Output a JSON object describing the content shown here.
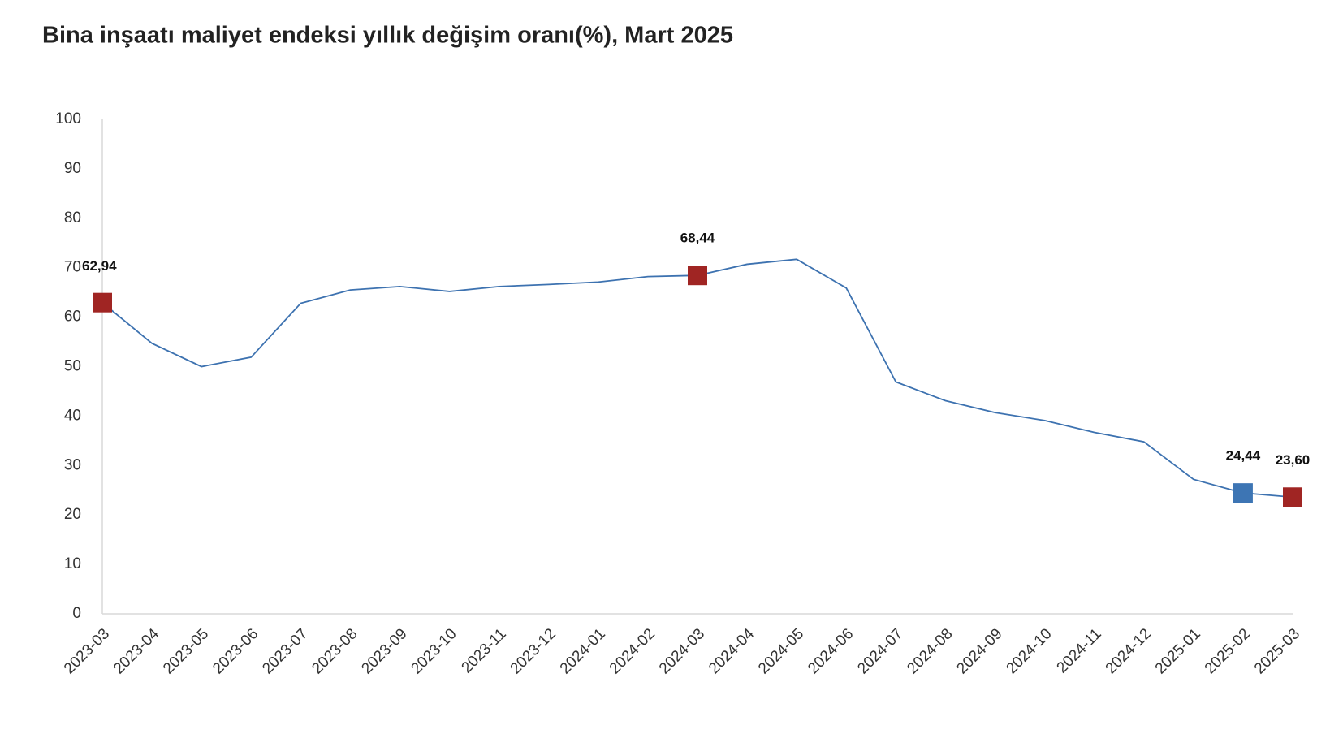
{
  "chart_data": {
    "type": "line",
    "title": "Bina inşaatı maliyet endeksi yıllık değişim oranı(%), Mart 2025",
    "categories": [
      "2023-03",
      "2023-04",
      "2023-05",
      "2023-06",
      "2023-07",
      "2023-08",
      "2023-09",
      "2023-10",
      "2023-11",
      "2023-12",
      "2024-01",
      "2024-02",
      "2024-03",
      "2024-04",
      "2024-05",
      "2024-06",
      "2024-07",
      "2024-08",
      "2024-09",
      "2024-10",
      "2024-11",
      "2024-12",
      "2025-01",
      "2025-02",
      "2025-03"
    ],
    "values": [
      62.94,
      54.7,
      50.0,
      51.9,
      62.8,
      65.5,
      66.2,
      65.2,
      66.2,
      66.6,
      67.1,
      68.2,
      68.44,
      70.7,
      71.7,
      65.9,
      46.9,
      43.1,
      40.7,
      39.1,
      36.7,
      34.8,
      27.2,
      24.44,
      23.6
    ],
    "value_labels": [
      "62,94",
      null,
      null,
      null,
      null,
      null,
      null,
      null,
      null,
      null,
      null,
      null,
      "68,44",
      null,
      null,
      null,
      null,
      null,
      null,
      null,
      null,
      null,
      null,
      "24,44",
      "23,60"
    ],
    "marker_colors": [
      "#a02523",
      null,
      null,
      null,
      null,
      null,
      null,
      null,
      null,
      null,
      null,
      null,
      "#a02523",
      null,
      null,
      null,
      null,
      null,
      null,
      null,
      null,
      null,
      null,
      "#3d75b4",
      "#a02523"
    ],
    "color": "#3d72b0",
    "ylim": [
      0,
      100
    ],
    "yticks": [
      0,
      10,
      20,
      30,
      40,
      50,
      60,
      70,
      80,
      90,
      100
    ],
    "grid": false
  }
}
